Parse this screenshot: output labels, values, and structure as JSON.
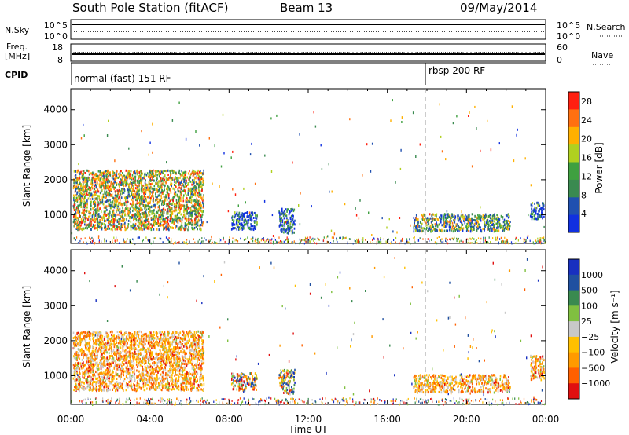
{
  "header": {
    "station": "South Pole Station (fitACF)",
    "beam": "Beam 13",
    "date": "09/May/2014"
  },
  "noise_panel": {
    "left_label": "N.Sky",
    "right_label": "N.Search",
    "left_ticks": [
      "10^5",
      "10^0"
    ],
    "right_ticks": [
      "10^5",
      "10^0"
    ]
  },
  "freq_panel": {
    "left_label_line1": "Freq.",
    "left_label_line2": "[MHz]",
    "left_ticks": [
      "18",
      "8"
    ],
    "right_label": "Nave",
    "right_ticks": [
      "60",
      "0"
    ]
  },
  "cpid_panel": {
    "label": "CPID",
    "modes": [
      {
        "name": "normal (fast) 151 RF",
        "start_hour": 0
      },
      {
        "name": "rbsp 200 RF",
        "start_hour": 18
      }
    ]
  },
  "colors": {
    "power_scale": [
      "#1030e0",
      "#2050b0",
      "#3a8a50",
      "#3fa040",
      "#b0d020",
      "#ffb000",
      "#ff7010",
      "#ff2010"
    ],
    "velocity_scale": [
      "#e01010",
      "#ff6000",
      "#ff9a00",
      "#ffc000",
      "#c8c8c8",
      "#80c040",
      "#3a8a50",
      "#2050a0",
      "#1830c0"
    ]
  },
  "chart_data": [
    {
      "type": "heatmap",
      "name": "power",
      "title": "",
      "xlabel": "Time UT",
      "ylabel": "Slant Range [km]",
      "xlim": [
        0,
        24
      ],
      "ylim": [
        180,
        4600
      ],
      "x_tick_labels": [
        "00:00",
        "04:00",
        "08:00",
        "12:00",
        "16:00",
        "20:00",
        "00:00"
      ],
      "y_tick_values": [
        1000,
        2000,
        3000,
        4000
      ],
      "colorbar": {
        "label": "Power [dB]",
        "ticks": [
          "4",
          "8",
          "12",
          "16",
          "20",
          "24",
          "28"
        ],
        "range": [
          0,
          30
        ]
      },
      "scatter_regions": [
        {
          "hours": [
            0.1,
            6.7
          ],
          "range_km": [
            600,
            2300
          ],
          "level": "high"
        },
        {
          "hours": [
            8.1,
            9.4
          ],
          "range_km": [
            600,
            1100
          ],
          "level": "low"
        },
        {
          "hours": [
            10.5,
            11.3
          ],
          "range_km": [
            500,
            1200
          ],
          "level": "low"
        },
        {
          "hours": [
            17.3,
            22.2
          ],
          "range_km": [
            550,
            1050
          ],
          "level": "mid"
        },
        {
          "hours": [
            23.2,
            23.9
          ],
          "range_km": [
            900,
            1400
          ],
          "level": "low"
        }
      ]
    },
    {
      "type": "heatmap",
      "name": "velocity",
      "title": "",
      "xlabel": "Time UT",
      "ylabel": "Slant Range [km]",
      "xlim": [
        0,
        24
      ],
      "ylim": [
        180,
        4600
      ],
      "x_tick_labels": [
        "00:00",
        "04:00",
        "08:00",
        "12:00",
        "16:00",
        "20:00",
        "00:00"
      ],
      "y_tick_values": [
        1000,
        2000,
        3000,
        4000
      ],
      "colorbar": {
        "label": "Velocity [m s⁻¹]",
        "ticks": [
          "1000",
          "500",
          "100",
          "25",
          "−25",
          "−100",
          "−500",
          "−1000"
        ]
      },
      "scatter_regions": [
        {
          "hours": [
            0.1,
            6.7
          ],
          "range_km": [
            600,
            2300
          ],
          "level": "negative"
        },
        {
          "hours": [
            8.1,
            9.4
          ],
          "range_km": [
            600,
            1100
          ],
          "level": "mixed"
        },
        {
          "hours": [
            10.5,
            11.3
          ],
          "range_km": [
            500,
            1200
          ],
          "level": "mixed"
        },
        {
          "hours": [
            17.3,
            22.2
          ],
          "range_km": [
            550,
            1050
          ],
          "level": "negative"
        },
        {
          "hours": [
            23.2,
            23.9
          ],
          "range_km": [
            900,
            1600
          ],
          "level": "negative"
        }
      ]
    }
  ]
}
